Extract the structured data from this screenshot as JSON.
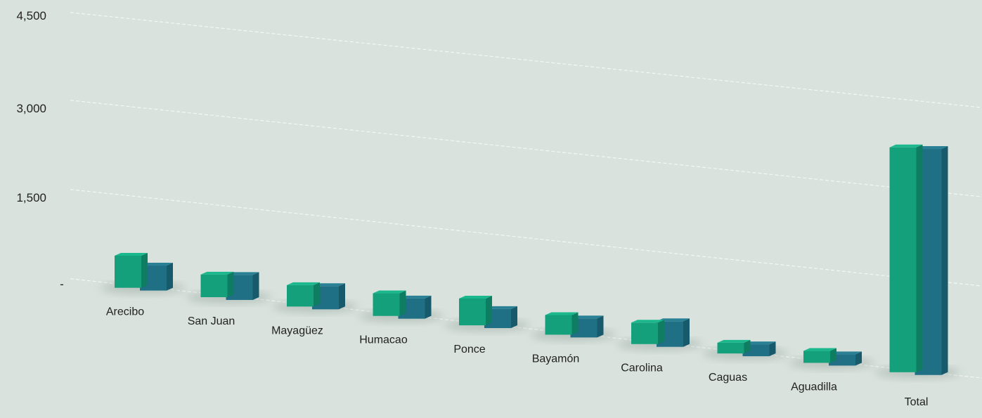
{
  "chart_data": {
    "type": "bar",
    "categories": [
      "Arecibo",
      "San Juan",
      "Mayagüez",
      "Humacao",
      "Ponce",
      "Bayamón",
      "Carolina",
      "Caguas",
      "Aguadilla",
      "Total"
    ],
    "series": [
      {
        "values": [
          540,
          380,
          360,
          380,
          450,
          330,
          360,
          180,
          200,
          3780
        ]
      },
      {
        "values": [
          420,
          420,
          390,
          340,
          320,
          320,
          430,
          200,
          190,
          3800
        ]
      }
    ],
    "y_ticks": [
      "-",
      "1,500",
      "3,000",
      "4,500"
    ],
    "ylim": [
      0,
      4500
    ],
    "grid": true,
    "colors": [
      "#14a07a",
      "#1f6f85"
    ]
  }
}
